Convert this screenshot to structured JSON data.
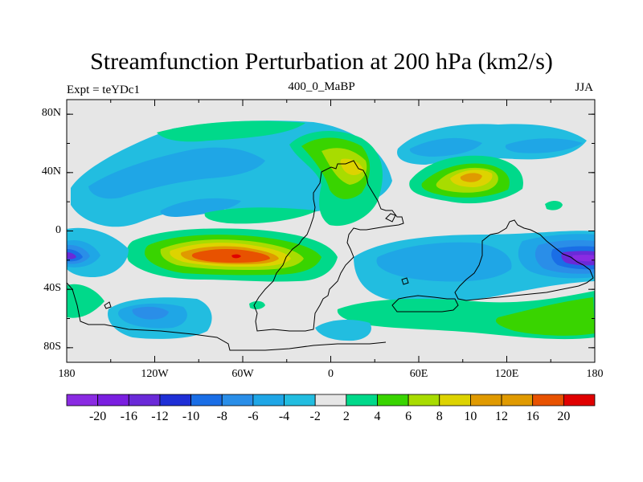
{
  "header": {
    "title": "Streamfunction Perturbation at 200 hPa (km2/s)",
    "left_label": "Expt = teYDc1",
    "center_label": "400_0_MaBP",
    "right_label": "JJA"
  },
  "map": {
    "lat_labels": [
      "80N",
      "40N",
      "0",
      "40S",
      "80S"
    ],
    "lat_values": [
      80,
      40,
      0,
      -40,
      -80
    ],
    "lon_labels": [
      "180",
      "120W",
      "60W",
      "0",
      "60E",
      "120E",
      "180"
    ],
    "lon_values": [
      -180,
      -120,
      -60,
      0,
      60,
      120,
      180
    ],
    "lat_range": [
      -90,
      90
    ],
    "lon_range": [
      -180,
      180
    ]
  },
  "colorbar": {
    "labels": [
      "-20",
      "-16",
      "-12",
      "-10",
      "-8",
      "-6",
      "-4",
      "-2",
      "2",
      "4",
      "6",
      "8",
      "10",
      "12",
      "16",
      "20"
    ],
    "colors": [
      "#8a2be2",
      "#7a1fe0",
      "#6a2ad8",
      "#1f2fd6",
      "#1a6ee6",
      "#2a8ee8",
      "#1fa6e6",
      "#22bde0",
      "#e6e6e6",
      "#00d98a",
      "#39d400",
      "#a8dc00",
      "#ddd300",
      "#e09a00",
      "#e85200",
      "#e00000"
    ]
  }
}
